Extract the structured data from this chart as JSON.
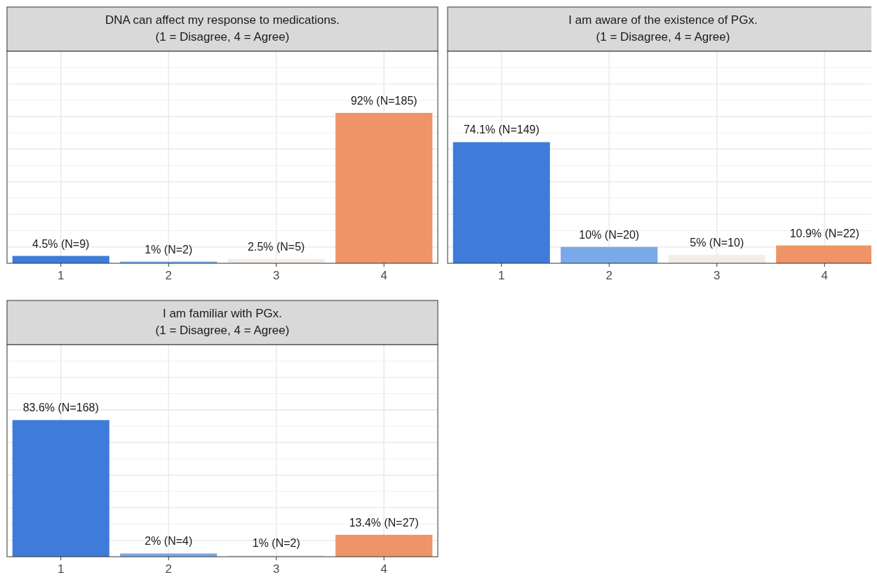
{
  "chart_data": [
    {
      "type": "bar",
      "title": "DNA can affect my response to medications.",
      "subtitle": "(1 = Disagree, 4 = Agree)",
      "categories": [
        "1",
        "2",
        "3",
        "4"
      ],
      "values": [
        4.5,
        1,
        2.5,
        92
      ],
      "colors": [
        "#3f7cd9",
        "#7aa9e8",
        "#f2ebe6",
        "#ee9466"
      ],
      "value_labels": [
        "4.5% (N=9)",
        "1% (N=2)",
        "2.5% (N=5)",
        "92% (N=185)"
      ],
      "grid": true
    },
    {
      "type": "bar",
      "title": "I am aware of the existence of PGx.",
      "subtitle": "(1 = Disagree, 4 = Agree)",
      "categories": [
        "1",
        "2",
        "3",
        "4"
      ],
      "values": [
        74.1,
        10,
        5,
        10.9
      ],
      "colors": [
        "#3f7cd9",
        "#7aa9e8",
        "#f2ebe6",
        "#ee9466"
      ],
      "value_labels": [
        "74.1% (N=149)",
        "10% (N=20)",
        "5% (N=10)",
        "10.9% (N=22)"
      ],
      "grid": true
    },
    {
      "type": "bar",
      "title": "I am familiar with PGx.",
      "subtitle": "(1 = Disagree, 4 = Agree)",
      "categories": [
        "1",
        "2",
        "3",
        "4"
      ],
      "values": [
        83.6,
        2,
        1,
        13.4
      ],
      "colors": [
        "#3f7cd9",
        "#7aa9e8",
        "#f2ebe6",
        "#ee9466"
      ],
      "value_labels": [
        "83.6% (N=168)",
        "2% (N=4)",
        "1% (N=2)",
        "13.4% (N=27)"
      ],
      "grid": true
    }
  ]
}
